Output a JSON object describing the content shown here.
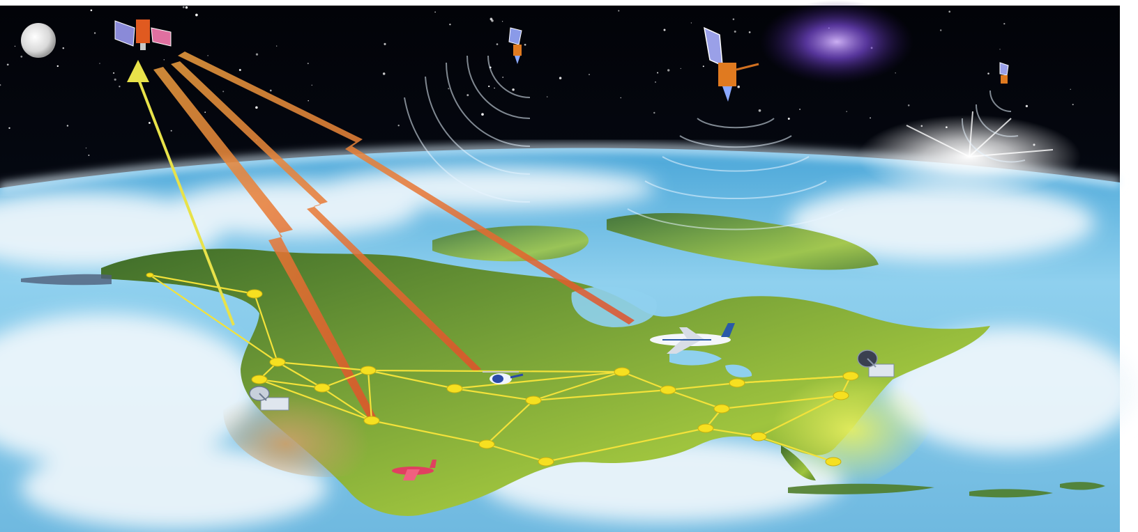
{
  "scene": {
    "description_colors": {
      "space": "#05060d",
      "ocean": "#7cc6e8",
      "cloud": "#eef6fb",
      "land_light": "#9cc24a",
      "land_dark": "#4f7d2a",
      "desert": "#b8925a",
      "network_line": "#f3e23a",
      "network_node": "#f6e020",
      "uplink": "#e6e04a",
      "downlink": "#e8703a"
    },
    "icons": {
      "moon": "moon-icon",
      "primary_satellite": "satellite-icon",
      "satellites": [
        "satellite-icon",
        "satellite-icon",
        "satellite-icon"
      ],
      "airliner": "airplane-icon",
      "helicopter": "helicopter-icon",
      "small_plane": "small-plane-icon",
      "ground_stations": [
        "ground-station-icon",
        "ground-station-icon"
      ]
    }
  }
}
